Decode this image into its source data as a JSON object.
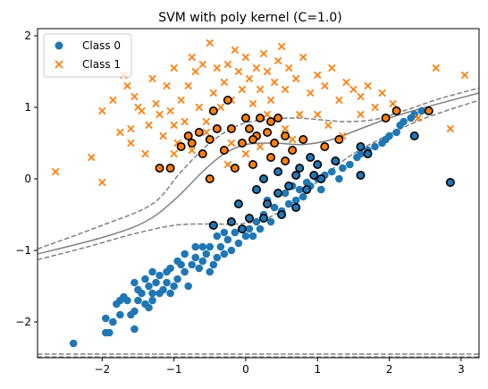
{
  "chart_data": {
    "type": "scatter",
    "title": "SVM with poly kernel (C=1.0)",
    "xlabel": "",
    "ylabel": "",
    "xlim": [
      -2.9,
      3.25
    ],
    "ylim": [
      -2.5,
      2.1
    ],
    "xticks": [
      -2,
      -1,
      0,
      1,
      2,
      3
    ],
    "yticks": [
      -2,
      -1,
      0,
      1,
      2
    ],
    "xtick_labels": [
      "−2",
      "−1",
      "0",
      "1",
      "2",
      "3"
    ],
    "ytick_labels": [
      "−2",
      "−1",
      "0",
      "1",
      "2"
    ],
    "grid": false,
    "legend_position": "top-left",
    "colors": {
      "class0": "#1f77b4",
      "class1": "#ff7f0e",
      "boundary": "#808080"
    },
    "series": [
      {
        "name": "Class 0",
        "marker": "circle",
        "points": [
          [
            -2.4,
            -2.3
          ],
          [
            -1.95,
            -2.15
          ],
          [
            -1.9,
            -2.15
          ],
          [
            -1.85,
            -2.0
          ],
          [
            -1.95,
            -1.95
          ],
          [
            -1.75,
            -1.9
          ],
          [
            -1.6,
            -1.9
          ],
          [
            -1.8,
            -1.75
          ],
          [
            -1.55,
            -1.85
          ],
          [
            -1.7,
            -1.65
          ],
          [
            -1.65,
            -1.7
          ],
          [
            -1.5,
            -1.7
          ],
          [
            -1.4,
            -1.75
          ],
          [
            -1.5,
            -1.55
          ],
          [
            -1.55,
            -1.45
          ],
          [
            -1.45,
            -1.6
          ],
          [
            -1.3,
            -1.6
          ],
          [
            -1.35,
            -1.5
          ],
          [
            -1.25,
            -1.45
          ],
          [
            -1.4,
            -1.4
          ],
          [
            -1.2,
            -1.35
          ],
          [
            -1.3,
            -1.3
          ],
          [
            -1.15,
            -1.55
          ],
          [
            -1.1,
            -1.3
          ],
          [
            -1.05,
            -1.6
          ],
          [
            -1.2,
            -1.6
          ],
          [
            -1.3,
            -1.7
          ],
          [
            -1.0,
            -1.5
          ],
          [
            -0.95,
            -1.4
          ],
          [
            -1.05,
            -1.25
          ],
          [
            -0.9,
            -1.2
          ],
          [
            -0.85,
            -1.3
          ],
          [
            -0.8,
            -1.5
          ],
          [
            -0.75,
            -1.2
          ],
          [
            -0.7,
            -1.1
          ],
          [
            -0.85,
            -1.05
          ],
          [
            -0.65,
            -1.25
          ],
          [
            -0.6,
            -1.15
          ],
          [
            -0.55,
            -1.05
          ],
          [
            -0.7,
            -0.95
          ],
          [
            -0.5,
            -1.3
          ],
          [
            -0.45,
            -1.2
          ],
          [
            -0.4,
            -1.1
          ],
          [
            -0.5,
            -0.95
          ],
          [
            -0.35,
            -0.95
          ],
          [
            -0.3,
            -1.05
          ],
          [
            -0.25,
            -0.85
          ],
          [
            -0.4,
            -0.8
          ],
          [
            -0.2,
            -1.0
          ],
          [
            -0.15,
            -0.75
          ],
          [
            -0.1,
            -0.9
          ],
          [
            0.0,
            -0.8
          ],
          [
            0.05,
            -0.7
          ],
          [
            0.1,
            -0.8
          ],
          [
            0.15,
            -0.6
          ],
          [
            0.2,
            -0.7
          ],
          [
            0.25,
            -0.5
          ],
          [
            0.35,
            -0.6
          ],
          [
            0.4,
            -0.4
          ],
          [
            0.5,
            -0.45
          ],
          [
            0.6,
            -0.35
          ],
          [
            0.55,
            -0.2
          ],
          [
            0.7,
            -0.3
          ],
          [
            0.75,
            -0.15
          ],
          [
            0.8,
            -0.25
          ],
          [
            0.85,
            -0.05
          ],
          [
            0.9,
            -0.1
          ],
          [
            1.0,
            0.0
          ],
          [
            1.05,
            -0.15
          ],
          [
            1.1,
            0.05
          ],
          [
            1.2,
            0.1
          ],
          [
            1.3,
            0.0
          ],
          [
            1.35,
            0.15
          ],
          [
            1.45,
            0.2
          ],
          [
            1.55,
            0.3
          ],
          [
            1.6,
            0.35
          ],
          [
            1.7,
            0.4
          ],
          [
            1.8,
            0.45
          ],
          [
            1.9,
            0.5
          ],
          [
            1.95,
            0.55
          ],
          [
            2.0,
            0.6
          ],
          [
            2.1,
            0.65
          ],
          [
            2.15,
            0.75
          ],
          [
            2.2,
            0.8
          ],
          [
            2.3,
            0.85
          ],
          [
            2.35,
            0.9
          ],
          [
            2.45,
            0.95
          ],
          [
            -1.55,
            -2.1
          ],
          [
            -1.75,
            -1.7
          ],
          [
            -1.35,
            -1.8
          ],
          [
            -1.1,
            -1.45
          ],
          [
            -0.95,
            -1.15
          ],
          [
            -0.6,
            -0.95
          ],
          [
            -0.3,
            -0.75
          ],
          [
            0.3,
            -0.3
          ],
          [
            0.65,
            -0.1
          ]
        ]
      },
      {
        "name": "Class 1",
        "marker": "x",
        "points": [
          [
            -2.65,
            0.1
          ],
          [
            -2.15,
            0.3
          ],
          [
            -2.0,
            -0.05
          ],
          [
            -2.0,
            0.95
          ],
          [
            -1.85,
            1.1
          ],
          [
            -1.75,
            0.65
          ],
          [
            -1.7,
            1.45
          ],
          [
            -1.65,
            1.3
          ],
          [
            -1.6,
            0.5
          ],
          [
            -1.6,
            0.7
          ],
          [
            -1.55,
            1.15
          ],
          [
            -1.5,
            1.0
          ],
          [
            -1.45,
            0.95
          ],
          [
            -1.4,
            0.35
          ],
          [
            -1.35,
            0.75
          ],
          [
            -1.3,
            1.4
          ],
          [
            -1.25,
            1.05
          ],
          [
            -1.2,
            0.9
          ],
          [
            -1.15,
            0.6
          ],
          [
            -1.1,
            1.3
          ],
          [
            -1.05,
            0.95
          ],
          [
            -1.0,
            1.55
          ],
          [
            -1.0,
            0.75
          ],
          [
            -0.95,
            0.5
          ],
          [
            -0.9,
            1.1
          ],
          [
            -0.85,
            0.8
          ],
          [
            -0.8,
            1.3
          ],
          [
            -0.75,
            1.7
          ],
          [
            -0.7,
            1.5
          ],
          [
            -0.65,
            1.0
          ],
          [
            -0.6,
            1.6
          ],
          [
            -0.55,
            0.8
          ],
          [
            -0.5,
            1.9
          ],
          [
            -0.45,
            1.2
          ],
          [
            -0.4,
            1.55
          ],
          [
            -0.35,
            1.0
          ],
          [
            -0.3,
            1.35
          ],
          [
            -0.25,
            1.6
          ],
          [
            -0.2,
            1.1
          ],
          [
            -0.15,
            1.8
          ],
          [
            -0.1,
            1.5
          ],
          [
            -0.05,
            1.25
          ],
          [
            0.0,
            1.7
          ],
          [
            0.05,
            1.4
          ],
          [
            0.1,
            1.05
          ],
          [
            0.15,
            1.55
          ],
          [
            0.2,
            1.25
          ],
          [
            0.25,
            1.75
          ],
          [
            0.3,
            1.5
          ],
          [
            0.35,
            1.1
          ],
          [
            0.4,
            1.35
          ],
          [
            0.45,
            1.65
          ],
          [
            0.5,
            1.85
          ],
          [
            0.55,
            1.25
          ],
          [
            0.6,
            1.55
          ],
          [
            0.7,
            1.4
          ],
          [
            0.8,
            1.7
          ],
          [
            0.9,
            1.2
          ],
          [
            1.0,
            1.45
          ],
          [
            1.1,
            1.3
          ],
          [
            1.2,
            1.55
          ],
          [
            1.3,
            1.1
          ],
          [
            1.4,
            1.35
          ],
          [
            1.5,
            1.25
          ],
          [
            1.6,
            1.15
          ],
          [
            1.7,
            1.3
          ],
          [
            1.8,
            1.0
          ],
          [
            1.9,
            1.2
          ],
          [
            2.05,
            1.05
          ],
          [
            2.4,
            0.85
          ],
          [
            2.65,
            1.55
          ],
          [
            3.05,
            1.45
          ],
          [
            1.35,
            0.6
          ],
          [
            1.6,
            0.9
          ],
          [
            2.85,
            0.7
          ],
          [
            -0.75,
            0.4
          ],
          [
            -0.55,
            0.65
          ],
          [
            -0.25,
            0.2
          ],
          [
            0.0,
            0.35
          ],
          [
            0.3,
            0.9
          ],
          [
            0.55,
            0.7
          ],
          [
            0.75,
            0.9
          ],
          [
            -1.0,
            0.35
          ],
          [
            -0.2,
            0.5
          ],
          [
            0.2,
            0.45
          ],
          [
            0.65,
            0.55
          ],
          [
            1.0,
            0.9
          ],
          [
            1.15,
            0.75
          ]
        ]
      }
    ],
    "support_vectors": [
      [
        -0.25,
        1.1
      ],
      [
        -0.45,
        0.95
      ],
      [
        0.0,
        0.85
      ],
      [
        0.2,
        0.85
      ],
      [
        0.35,
        0.8
      ],
      [
        0.45,
        0.85
      ],
      [
        -0.65,
        0.65
      ],
      [
        -0.4,
        0.7
      ],
      [
        -0.2,
        0.7
      ],
      [
        0.05,
        0.7
      ],
      [
        0.3,
        0.65
      ],
      [
        0.55,
        0.6
      ],
      [
        0.8,
        0.55
      ],
      [
        -0.5,
        0.55
      ],
      [
        -0.75,
        0.5
      ],
      [
        -0.9,
        0.45
      ],
      [
        -0.6,
        0.35
      ],
      [
        -0.3,
        0.4
      ],
      [
        -0.05,
        0.5
      ],
      [
        0.15,
        0.6
      ],
      [
        0.4,
        0.5
      ],
      [
        0.65,
        0.4
      ],
      [
        0.9,
        0.3
      ],
      [
        1.1,
        0.45
      ],
      [
        1.3,
        0.55
      ],
      [
        1.6,
        0.45
      ],
      [
        1.7,
        0.35
      ],
      [
        -1.05,
        0.15
      ],
      [
        -0.15,
        0.15
      ],
      [
        0.1,
        0.2
      ],
      [
        0.35,
        0.3
      ],
      [
        0.55,
        0.25
      ],
      [
        0.75,
        0.15
      ],
      [
        1.0,
        0.2
      ],
      [
        -0.5,
        0.0
      ],
      [
        0.25,
        0.0
      ],
      [
        0.45,
        0.1
      ],
      [
        0.7,
        0.05
      ],
      [
        0.95,
        0.05
      ],
      [
        1.25,
        0.25
      ],
      [
        0.15,
        -0.15
      ],
      [
        0.45,
        -0.2
      ],
      [
        0.6,
        -0.1
      ],
      [
        0.85,
        -0.15
      ],
      [
        1.05,
        0.0
      ],
      [
        -0.1,
        -0.35
      ],
      [
        0.3,
        -0.35
      ],
      [
        0.5,
        -0.5
      ],
      [
        0.7,
        -0.4
      ],
      [
        -0.45,
        -0.65
      ],
      [
        -0.2,
        -0.6
      ],
      [
        0.05,
        -0.55
      ],
      [
        0.25,
        -0.55
      ],
      [
        -0.05,
        -0.7
      ],
      [
        1.6,
        0.05
      ],
      [
        2.55,
        0.95
      ],
      [
        2.85,
        -0.05
      ],
      [
        2.35,
        0.6
      ],
      [
        2.1,
        0.95
      ],
      [
        1.95,
        0.85
      ],
      [
        -0.8,
        0.6
      ],
      [
        -1.2,
        0.15
      ],
      [
        0.1,
        0.55
      ]
    ],
    "boundary_curves": {
      "upper_margin": [
        [
          -2.9,
          -0.98
        ],
        [
          -2.0,
          -0.65
        ],
        [
          -1.3,
          -0.35
        ],
        [
          -0.9,
          0.1
        ],
        [
          -0.5,
          0.5
        ],
        [
          -0.1,
          0.75
        ],
        [
          0.3,
          0.83
        ],
        [
          0.7,
          0.85
        ],
        [
          1.1,
          0.82
        ],
        [
          1.4,
          0.8
        ],
        [
          1.8,
          0.83
        ],
        [
          2.2,
          0.95
        ],
        [
          2.7,
          1.12
        ],
        [
          3.25,
          1.27
        ]
      ],
      "decision": [
        [
          -2.9,
          -1.05
        ],
        [
          -2.0,
          -0.82
        ],
        [
          -1.4,
          -0.6
        ],
        [
          -1.0,
          -0.3
        ],
        [
          -0.6,
          0.1
        ],
        [
          -0.3,
          0.35
        ],
        [
          0.0,
          0.48
        ],
        [
          0.4,
          0.5
        ],
        [
          0.8,
          0.48
        ],
        [
          1.2,
          0.55
        ],
        [
          1.6,
          0.7
        ],
        [
          2.0,
          0.85
        ],
        [
          2.5,
          1.0
        ],
        [
          3.25,
          1.2
        ]
      ],
      "lower_margin": [
        [
          -2.9,
          -1.13
        ],
        [
          -2.2,
          -0.95
        ],
        [
          -1.6,
          -0.78
        ],
        [
          -1.0,
          -0.65
        ],
        [
          -0.5,
          -0.63
        ],
        [
          -0.1,
          -0.63
        ],
        [
          0.3,
          -0.55
        ],
        [
          0.7,
          -0.3
        ],
        [
          1.1,
          0.05
        ],
        [
          1.5,
          0.35
        ],
        [
          2.0,
          0.62
        ],
        [
          2.5,
          0.85
        ],
        [
          3.25,
          1.1
        ]
      ],
      "bottom_margin_a": [
        [
          -2.9,
          -2.45
        ],
        [
          3.25,
          -2.45
        ]
      ],
      "bottom_margin_b": [
        [
          -2.9,
          -2.49
        ],
        [
          3.25,
          -2.49
        ]
      ]
    }
  }
}
